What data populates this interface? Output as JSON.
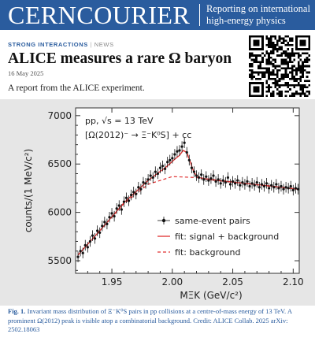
{
  "masthead": {
    "title": "CERNCOURIER",
    "tagline": "Reporting on international high-energy physics",
    "color": "#2a5c9e"
  },
  "article": {
    "section": "STRONG INTERACTIONS",
    "separator": "|",
    "category": "NEWS",
    "headline": "ALICE measures a rare Ω baryon",
    "date": "16 May 2025",
    "standfirst": "A report from the ALICE experiment.",
    "qr_icon": "qr-code-icon"
  },
  "figure": {
    "caption_label": "Fig. 1.",
    "caption_text": "Invariant mass distribution of Ξ⁻K⁰S pairs in pp collisions at a centre-of-mass energy of 13 TeV. A prominent Ω(2012) peak is visible atop a combinatorial background. Credit: ALICE Collab. 2025 arXiv: 2502.18063"
  },
  "chart_data": {
    "type": "scatter",
    "annotation_line1": "pp, √s = 13 TeV",
    "annotation_line2": "[Ω(2012)⁻ → Ξ⁻K⁰S] + cc",
    "xlabel": "MΞK (GeV/c²)",
    "ylabel": "counts/(1 MeV/c²)",
    "xlim": [
      1.92,
      2.105
    ],
    "ylim": [
      5370,
      7080
    ],
    "xticks": [
      1.95,
      2.0,
      2.05,
      2.1
    ],
    "xtick_labels": [
      "1.95",
      "2.00",
      "2.05",
      "2.10"
    ],
    "yticks": [
      5500,
      6000,
      6500,
      7000
    ],
    "ytick_labels": [
      "5500",
      "6000",
      "6500",
      "7000"
    ],
    "legend_position": "bottom-right",
    "series": [
      {
        "name": "same-event pairs",
        "style": "points",
        "color": "#111111",
        "x": [
          1.922,
          1.924,
          1.926,
          1.928,
          1.93,
          1.932,
          1.934,
          1.936,
          1.938,
          1.94,
          1.942,
          1.944,
          1.946,
          1.948,
          1.95,
          1.952,
          1.954,
          1.956,
          1.958,
          1.96,
          1.962,
          1.964,
          1.966,
          1.968,
          1.97,
          1.972,
          1.974,
          1.976,
          1.978,
          1.98,
          1.982,
          1.984,
          1.986,
          1.988,
          1.99,
          1.992,
          1.994,
          1.996,
          1.998,
          2.0,
          2.002,
          2.004,
          2.006,
          2.008,
          2.01,
          2.012,
          2.014,
          2.016,
          2.018,
          2.02,
          2.022,
          2.024,
          2.026,
          2.028,
          2.03,
          2.032,
          2.034,
          2.036,
          2.038,
          2.04,
          2.042,
          2.044,
          2.046,
          2.048,
          2.05,
          2.052,
          2.054,
          2.056,
          2.058,
          2.06,
          2.062,
          2.064,
          2.066,
          2.068,
          2.07,
          2.072,
          2.074,
          2.076,
          2.078,
          2.08,
          2.082,
          2.084,
          2.086,
          2.088,
          2.09,
          2.092,
          2.094,
          2.096,
          2.098,
          2.1,
          2.102,
          2.104
        ],
        "y": [
          5540,
          5600,
          5580,
          5660,
          5640,
          5700,
          5760,
          5730,
          5810,
          5790,
          5860,
          5900,
          5880,
          5950,
          5990,
          5960,
          6040,
          6070,
          6030,
          6110,
          6150,
          6120,
          6180,
          6210,
          6190,
          6260,
          6240,
          6310,
          6300,
          6340,
          6380,
          6360,
          6420,
          6400,
          6460,
          6480,
          6450,
          6520,
          6540,
          6560,
          6600,
          6630,
          6640,
          6680,
          6720,
          6620,
          6540,
          6460,
          6420,
          6380,
          6360,
          6390,
          6340,
          6370,
          6330,
          6350,
          6380,
          6320,
          6340,
          6300,
          6330,
          6310,
          6360,
          6290,
          6320,
          6300,
          6330,
          6280,
          6310,
          6290,
          6320,
          6270,
          6300,
          6280,
          6310,
          6260,
          6290,
          6270,
          6300,
          6250,
          6280,
          6260,
          6290,
          6250,
          6270,
          6240,
          6260,
          6250,
          6270,
          6230,
          6250,
          6240
        ]
      },
      {
        "name": "fit: signal + background",
        "style": "solid",
        "color": "#e03030",
        "x": [
          1.922,
          1.94,
          1.96,
          1.98,
          1.995,
          2.002,
          2.006,
          2.009,
          2.012,
          2.015,
          2.018,
          2.022,
          2.03,
          2.04,
          2.06,
          2.08,
          2.104
        ],
        "y": [
          5560,
          5810,
          6100,
          6330,
          6470,
          6550,
          6590,
          6640,
          6620,
          6520,
          6410,
          6360,
          6340,
          6325,
          6300,
          6275,
          6240
        ]
      },
      {
        "name": "fit: background",
        "style": "dashed",
        "color": "#e03030",
        "x": [
          1.922,
          1.94,
          1.96,
          1.98,
          2.0,
          2.02,
          2.04,
          2.06,
          2.08,
          2.104
        ],
        "y": [
          5560,
          5810,
          6090,
          6290,
          6370,
          6360,
          6330,
          6300,
          6270,
          6240
        ]
      }
    ]
  }
}
